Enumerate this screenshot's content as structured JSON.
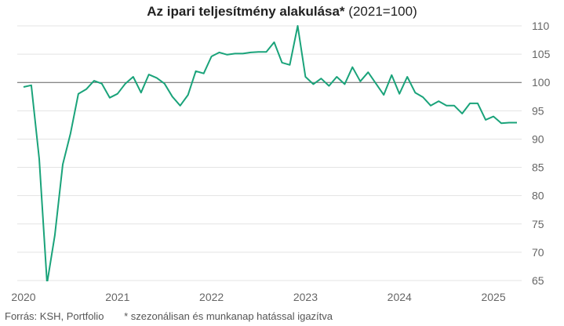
{
  "chart_data": {
    "type": "line",
    "title": "Az ipari teljesítmény alakulása*",
    "title_suffix": "(2021=100)",
    "xlabel": "",
    "ylabel": "",
    "ylim": [
      65,
      110
    ],
    "xlim": [
      2020.0,
      2025.3
    ],
    "yticks": [
      "65",
      "70",
      "75",
      "80",
      "85",
      "90",
      "95",
      "100",
      "105",
      "110"
    ],
    "xticks": [
      {
        "value": 2020,
        "label": "2020"
      },
      {
        "value": 2021,
        "label": "2021"
      },
      {
        "value": 2022,
        "label": "2022"
      },
      {
        "value": 2023,
        "label": "2023"
      },
      {
        "value": 2024,
        "label": "2024"
      },
      {
        "value": 2025,
        "label": "2025"
      }
    ],
    "reference_line": 100,
    "grid": "horizontal",
    "line_color": "#1aa37a",
    "reference_color": "#666666",
    "series": [
      {
        "x": [
          2020.0,
          2020.083,
          2020.167,
          2020.25,
          2020.333,
          2020.417,
          2020.5,
          2020.583,
          2020.667,
          2020.75,
          2020.833,
          2020.917,
          2021.0,
          2021.083,
          2021.167,
          2021.25,
          2021.333,
          2021.417,
          2021.5,
          2021.583,
          2021.667,
          2021.75,
          2021.833,
          2021.917,
          2022.0,
          2022.083,
          2022.167,
          2022.25,
          2022.333,
          2022.417,
          2022.5,
          2022.583,
          2022.667,
          2022.75,
          2022.833,
          2022.917,
          2023.0,
          2023.083,
          2023.167,
          2023.25,
          2023.333,
          2023.417,
          2023.5,
          2023.583,
          2023.667,
          2023.75,
          2023.833,
          2023.917,
          2024.0,
          2024.083,
          2024.167,
          2024.25,
          2024.333,
          2024.417,
          2024.5,
          2024.583,
          2024.667,
          2024.75,
          2024.833,
          2024.917,
          2025.0,
          2025.083,
          2025.167,
          2025.25
        ],
        "values": [
          99.2,
          99.5,
          86.5,
          64.5,
          73.0,
          85.5,
          91.0,
          98.0,
          98.8,
          100.3,
          99.8,
          97.3,
          98.0,
          99.8,
          101.0,
          98.2,
          101.4,
          100.8,
          99.8,
          97.5,
          95.9,
          97.8,
          102.0,
          101.6,
          104.6,
          105.3,
          104.9,
          105.1,
          105.1,
          105.3,
          105.4,
          105.4,
          107.1,
          103.5,
          103.1,
          110.0,
          101.0,
          99.7,
          100.7,
          99.4,
          101.0,
          99.7,
          102.7,
          100.2,
          101.8,
          99.8,
          97.8,
          101.3,
          98.0,
          101.0,
          98.2,
          97.4,
          95.9,
          96.7,
          95.9,
          95.9,
          94.5,
          96.3,
          96.3,
          93.4,
          94.0,
          92.8,
          92.9,
          92.9
        ]
      }
    ]
  },
  "footer": {
    "source": "Forrás: KSH, Portfolio",
    "note": "* szezonálisan és munkanap hatással igazítva"
  }
}
